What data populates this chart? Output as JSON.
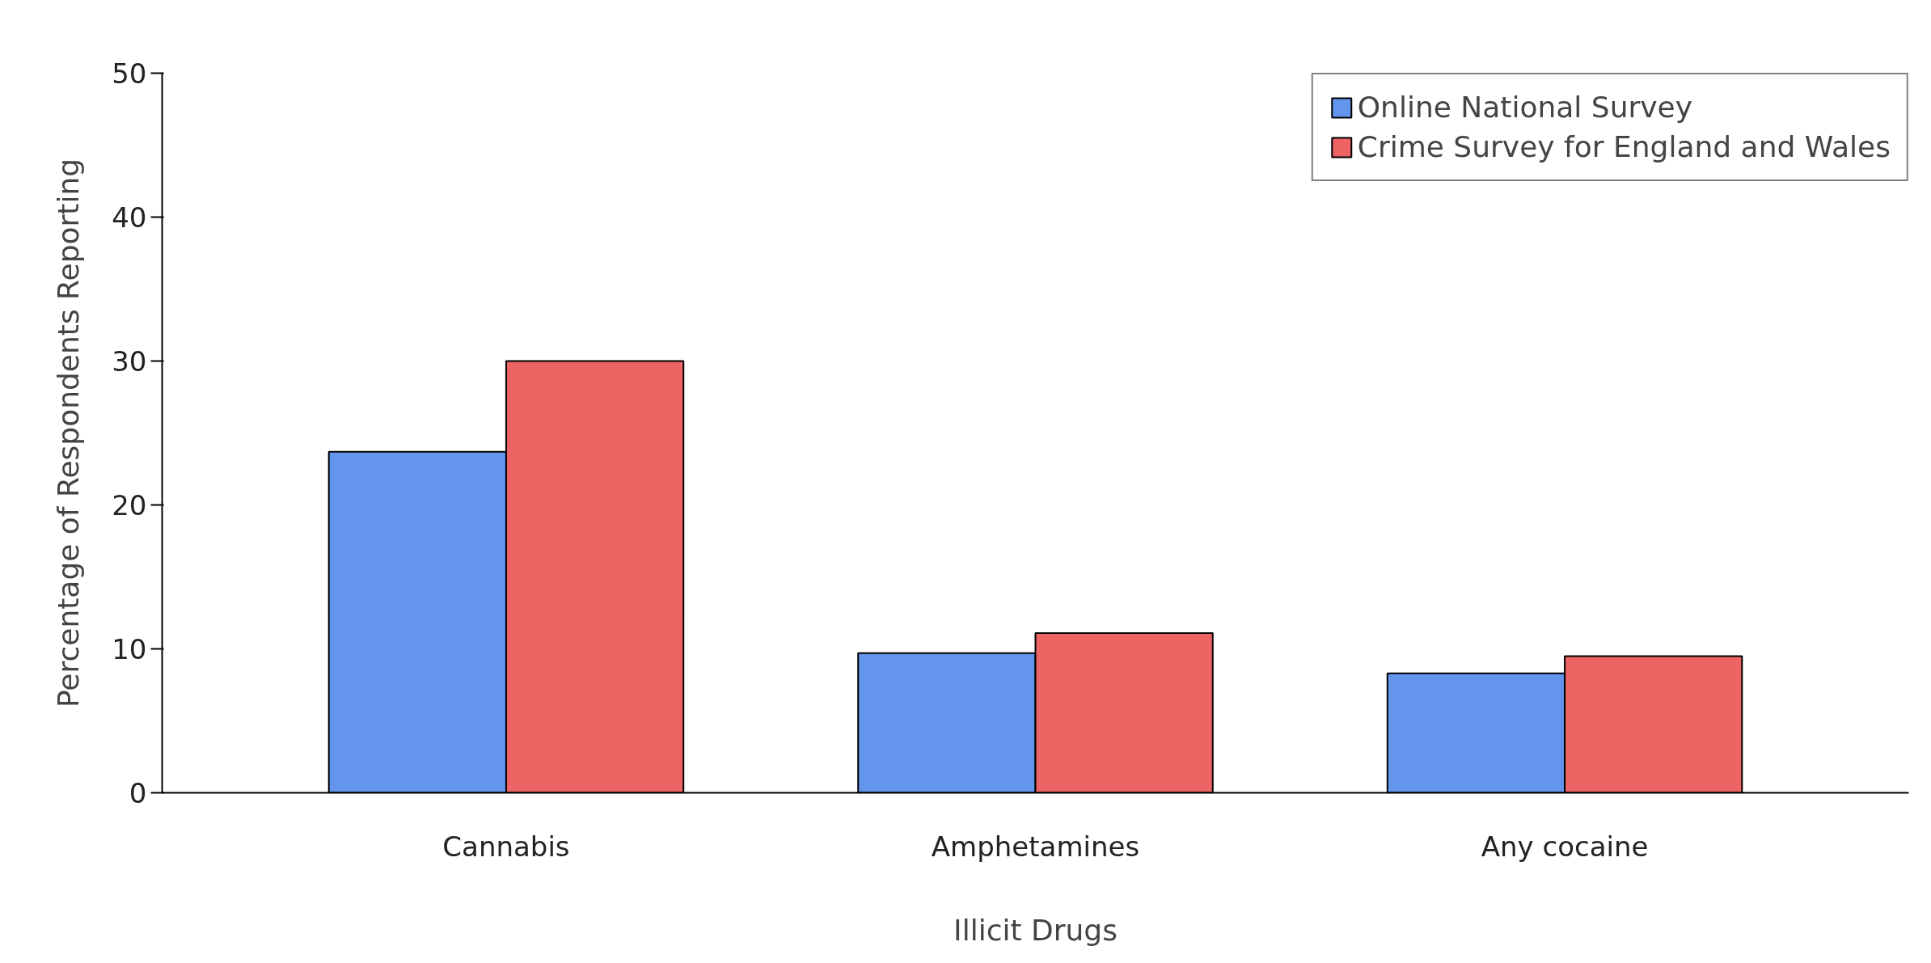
{
  "chart_data": {
    "type": "bar",
    "xlabel": "Illicit Drugs",
    "ylabel": "Percentage of Respondents Reporting",
    "categories": [
      "Cannabis",
      "Amphetamines",
      "Any cocaine"
    ],
    "series": [
      {
        "name": "Online National Survey",
        "color": "#6495ed",
        "values": [
          23.7,
          9.7,
          8.3
        ]
      },
      {
        "name": "Crime Survey for England and Wales",
        "color": "#ee6363",
        "values": [
          30.0,
          11.1,
          9.5
        ]
      }
    ],
    "ylim": [
      0,
      50
    ],
    "yticks": [
      0,
      10,
      20,
      30,
      40,
      50
    ],
    "grid": false,
    "legend": "top right"
  }
}
